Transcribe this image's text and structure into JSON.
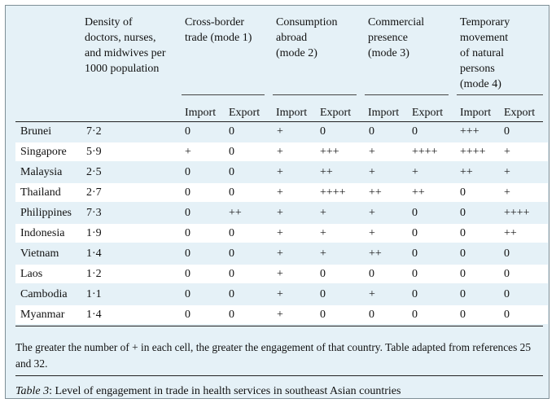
{
  "headers": {
    "density": [
      "Density of",
      "doctors, nurses,",
      "and midwives per",
      "1000 population"
    ],
    "mode1": [
      "Cross-border",
      "trade (mode 1)"
    ],
    "mode2": [
      "Consumption",
      "abroad",
      "(mode 2)"
    ],
    "mode3": [
      "Commercial",
      "presence",
      "(mode 3)"
    ],
    "mode4": [
      "Temporary",
      "movement",
      "of natural",
      "persons",
      "(mode 4)"
    ]
  },
  "subheaders": {
    "import": "Import",
    "export": "Export"
  },
  "rows": [
    {
      "country": "Brunei",
      "density": "7·2",
      "m1i": "0",
      "m1e": "0",
      "m2i": "+",
      "m2e": "0",
      "m3i": "0",
      "m3e": "0",
      "m4i": "+++",
      "m4e": "0"
    },
    {
      "country": "Singapore",
      "density": "5·9",
      "m1i": "+",
      "m1e": "0",
      "m2i": "+",
      "m2e": "+++",
      "m3i": "+",
      "m3e": "++++",
      "m4i": "++++",
      "m4e": "+"
    },
    {
      "country": "Malaysia",
      "density": "2·5",
      "m1i": "0",
      "m1e": "0",
      "m2i": "+",
      "m2e": "++",
      "m3i": "+",
      "m3e": "+",
      "m4i": "++",
      "m4e": "+"
    },
    {
      "country": "Thailand",
      "density": "2·7",
      "m1i": "0",
      "m1e": "0",
      "m2i": "+",
      "m2e": "++++",
      "m3i": "++",
      "m3e": "++",
      "m4i": "0",
      "m4e": "+"
    },
    {
      "country": "Philippines",
      "density": "7·3",
      "m1i": "0",
      "m1e": "++",
      "m2i": "+",
      "m2e": "+",
      "m3i": "+",
      "m3e": "0",
      "m4i": "0",
      "m4e": "++++"
    },
    {
      "country": "Indonesia",
      "density": "1·9",
      "m1i": "0",
      "m1e": "0",
      "m2i": "+",
      "m2e": "+",
      "m3i": "+",
      "m3e": "0",
      "m4i": "0",
      "m4e": "++"
    },
    {
      "country": "Vietnam",
      "density": "1·4",
      "m1i": "0",
      "m1e": "0",
      "m2i": "+",
      "m2e": "+",
      "m3i": "++",
      "m3e": "0",
      "m4i": "0",
      "m4e": "0"
    },
    {
      "country": "Laos",
      "density": "1·2",
      "m1i": "0",
      "m1e": "0",
      "m2i": "+",
      "m2e": "0",
      "m3i": "0",
      "m3e": "0",
      "m4i": "0",
      "m4e": "0"
    },
    {
      "country": "Cambodia",
      "density": "1·1",
      "m1i": "0",
      "m1e": "0",
      "m2i": "+",
      "m2e": "0",
      "m3i": "+",
      "m3e": "0",
      "m4i": "0",
      "m4e": "0"
    },
    {
      "country": "Myanmar",
      "density": "1·4",
      "m1i": "0",
      "m1e": "0",
      "m2i": "+",
      "m2e": "0",
      "m3i": "0",
      "m3e": "0",
      "m4i": "0",
      "m4e": "0"
    }
  ],
  "footnote": "The greater the number of + in each cell, the greater the engagement of that country. Table adapted from references 25 and 32.",
  "caption": {
    "label": "Table 3",
    "text": ": Level of engagement in trade in health services in southeast Asian countries"
  }
}
